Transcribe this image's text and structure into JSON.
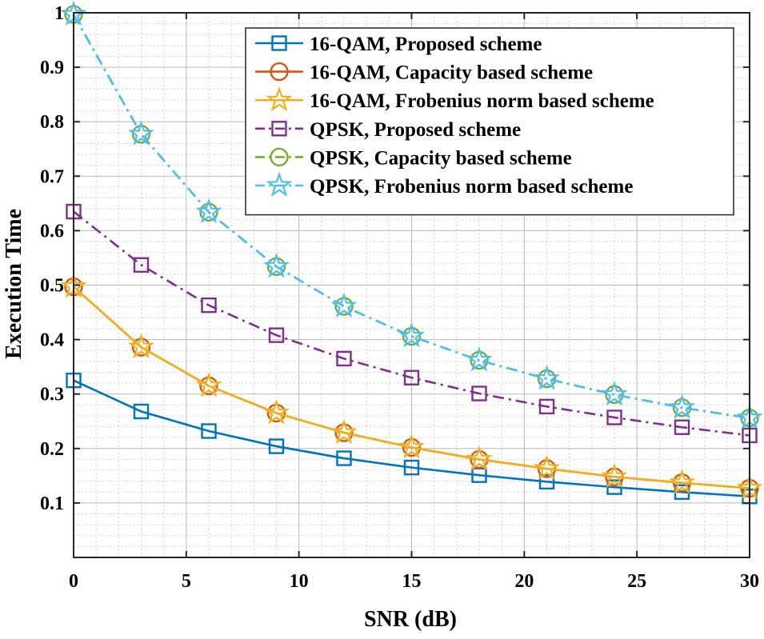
{
  "chart_data": {
    "type": "line",
    "xlabel": "SNR (dB)",
    "ylabel": "Execution Time",
    "xlim": [
      0,
      30
    ],
    "ylim": [
      0,
      1
    ],
    "xticks": [
      0,
      5,
      10,
      15,
      20,
      25,
      30
    ],
    "yticks": [
      0.1,
      0.2,
      0.3,
      0.4,
      0.5,
      0.6,
      0.7,
      0.8,
      0.9,
      1
    ],
    "ytick_labels": [
      "0.1",
      "0.2",
      "0.3",
      "0.4",
      "0.5",
      "0.6",
      "0.7",
      "0.8",
      "0.9",
      "1"
    ],
    "grid": true,
    "minor_grid": true,
    "legend_position": "top-right",
    "x": [
      0,
      3,
      6,
      9,
      12,
      15,
      18,
      21,
      24,
      27,
      30
    ],
    "series": [
      {
        "name": "16-QAM, Proposed scheme",
        "color": "#0072BD",
        "line_style": "solid",
        "marker": "square",
        "values": [
          0.325,
          0.268,
          0.232,
          0.204,
          0.182,
          0.165,
          0.151,
          0.139,
          0.129,
          0.12,
          0.112
        ]
      },
      {
        "name": "16-QAM, Capacity based scheme",
        "color": "#D95319",
        "line_style": "solid",
        "marker": "circle",
        "values": [
          0.497,
          0.386,
          0.315,
          0.265,
          0.229,
          0.202,
          0.18,
          0.163,
          0.148,
          0.137,
          0.127
        ]
      },
      {
        "name": "16-QAM, Frobenius norm based scheme",
        "color": "#EDB120",
        "line_style": "solid",
        "marker": "star",
        "values": [
          0.497,
          0.386,
          0.315,
          0.265,
          0.229,
          0.202,
          0.18,
          0.163,
          0.148,
          0.137,
          0.127
        ]
      },
      {
        "name": "QPSK, Proposed scheme",
        "color": "#7E2F8E",
        "line_style": "dashdot",
        "marker": "square",
        "values": [
          0.635,
          0.537,
          0.463,
          0.408,
          0.365,
          0.33,
          0.301,
          0.277,
          0.257,
          0.239,
          0.224
        ]
      },
      {
        "name": "QPSK, Capacity based scheme",
        "color": "#77AC30",
        "line_style": "dashdot",
        "marker": "circle",
        "values": [
          0.997,
          0.777,
          0.634,
          0.534,
          0.461,
          0.406,
          0.362,
          0.328,
          0.299,
          0.275,
          0.256
        ]
      },
      {
        "name": "QPSK, Frobenius norm based scheme",
        "color": "#4DBEEE",
        "line_style": "dashdot",
        "marker": "star",
        "values": [
          0.997,
          0.777,
          0.634,
          0.534,
          0.461,
          0.406,
          0.362,
          0.328,
          0.299,
          0.275,
          0.256
        ]
      }
    ]
  }
}
